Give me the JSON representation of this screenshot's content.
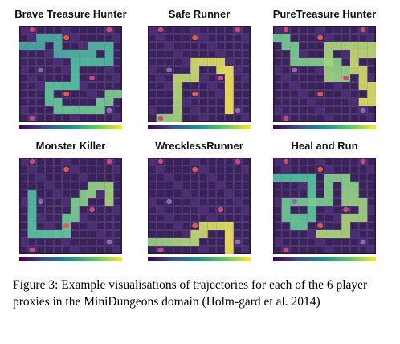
{
  "panels": [
    {
      "title": "Brave Treasure Hunter",
      "path": [
        [
          0,
          2
        ],
        [
          1,
          2
        ],
        [
          2,
          2
        ],
        [
          2,
          1
        ],
        [
          3,
          1
        ],
        [
          4,
          1
        ],
        [
          4,
          2
        ],
        [
          4,
          3
        ],
        [
          5,
          3
        ],
        [
          6,
          3
        ],
        [
          7,
          3
        ],
        [
          8,
          3
        ],
        [
          8,
          2
        ],
        [
          9,
          2
        ],
        [
          10,
          2
        ],
        [
          10,
          3
        ],
        [
          10,
          4
        ],
        [
          9,
          4
        ],
        [
          8,
          4
        ],
        [
          7,
          4
        ],
        [
          6,
          4
        ],
        [
          6,
          5
        ],
        [
          6,
          6
        ],
        [
          6,
          7
        ],
        [
          5,
          7
        ],
        [
          4,
          7
        ],
        [
          3,
          7
        ],
        [
          3,
          8
        ],
        [
          3,
          9
        ],
        [
          4,
          9
        ],
        [
          4,
          10
        ],
        [
          5,
          10
        ],
        [
          6,
          10
        ],
        [
          7,
          10
        ],
        [
          8,
          10
        ],
        [
          9,
          10
        ],
        [
          9,
          9
        ],
        [
          10,
          9
        ],
        [
          10,
          8
        ],
        [
          11,
          8
        ]
      ],
      "level": 0.38
    },
    {
      "title": "Safe Runner",
      "path": [
        [
          1,
          11
        ],
        [
          2,
          11
        ],
        [
          3,
          11
        ],
        [
          3,
          10
        ],
        [
          3,
          9
        ],
        [
          3,
          8
        ],
        [
          3,
          7
        ],
        [
          3,
          6
        ],
        [
          4,
          6
        ],
        [
          5,
          6
        ],
        [
          5,
          5
        ],
        [
          5,
          4
        ],
        [
          6,
          4
        ],
        [
          7,
          4
        ],
        [
          8,
          4
        ],
        [
          8,
          5
        ],
        [
          9,
          5
        ],
        [
          9,
          6
        ],
        [
          9,
          7
        ],
        [
          9,
          8
        ],
        [
          9,
          9
        ],
        [
          9,
          10
        ]
      ],
      "level": 0.95
    },
    {
      "title": "PureTreasure Hunter",
      "path": [
        [
          0,
          1
        ],
        [
          1,
          1
        ],
        [
          1,
          2
        ],
        [
          2,
          2
        ],
        [
          2,
          3
        ],
        [
          2,
          4
        ],
        [
          3,
          4
        ],
        [
          4,
          4
        ],
        [
          5,
          4
        ],
        [
          6,
          4
        ],
        [
          7,
          4
        ],
        [
          7,
          5
        ],
        [
          8,
          5
        ],
        [
          8,
          6
        ],
        [
          7,
          6
        ],
        [
          6,
          6
        ],
        [
          6,
          5
        ],
        [
          6,
          4
        ],
        [
          6,
          3
        ],
        [
          6,
          2
        ],
        [
          7,
          2
        ],
        [
          8,
          2
        ],
        [
          9,
          2
        ],
        [
          10,
          2
        ],
        [
          11,
          2
        ],
        [
          11,
          3
        ],
        [
          10,
          3
        ],
        [
          9,
          3
        ],
        [
          9,
          4
        ],
        [
          9,
          5
        ],
        [
          10,
          5
        ],
        [
          10,
          6
        ],
        [
          10,
          7
        ],
        [
          11,
          7
        ],
        [
          11,
          8
        ],
        [
          11,
          9
        ],
        [
          10,
          9
        ]
      ],
      "level": 0.78
    },
    {
      "title": "Monster Killer",
      "path": [
        [
          1,
          4
        ],
        [
          1,
          5
        ],
        [
          1,
          6
        ],
        [
          1,
          7
        ],
        [
          1,
          8
        ],
        [
          1,
          9
        ],
        [
          2,
          9
        ],
        [
          3,
          9
        ],
        [
          4,
          9
        ],
        [
          5,
          9
        ],
        [
          5,
          8
        ],
        [
          5,
          7
        ],
        [
          6,
          7
        ],
        [
          6,
          6
        ],
        [
          6,
          5
        ],
        [
          7,
          5
        ],
        [
          7,
          4
        ],
        [
          8,
          4
        ],
        [
          8,
          3
        ],
        [
          9,
          3
        ],
        [
          10,
          3
        ],
        [
          10,
          4
        ],
        [
          10,
          5
        ]
      ],
      "level": 0.55
    },
    {
      "title": "WrecklessRunner",
      "path": [
        [
          0,
          10
        ],
        [
          1,
          10
        ],
        [
          2,
          10
        ],
        [
          3,
          10
        ],
        [
          4,
          10
        ],
        [
          5,
          10
        ],
        [
          5,
          9
        ],
        [
          6,
          9
        ],
        [
          6,
          8
        ],
        [
          7,
          8
        ],
        [
          8,
          8
        ],
        [
          9,
          8
        ],
        [
          9,
          9
        ],
        [
          9,
          10
        ],
        [
          9,
          11
        ]
      ],
      "level": 0.92
    },
    {
      "title": "Heal and Run",
      "path": [
        [
          0,
          2
        ],
        [
          1,
          2
        ],
        [
          2,
          2
        ],
        [
          3,
          2
        ],
        [
          4,
          2
        ],
        [
          4,
          3
        ],
        [
          4,
          4
        ],
        [
          4,
          5
        ],
        [
          4,
          6
        ],
        [
          4,
          7
        ],
        [
          3,
          7
        ],
        [
          3,
          8
        ],
        [
          2,
          8
        ],
        [
          2,
          7
        ],
        [
          1,
          7
        ],
        [
          1,
          6
        ],
        [
          1,
          5
        ],
        [
          2,
          5
        ],
        [
          3,
          5
        ],
        [
          4,
          5
        ],
        [
          5,
          5
        ],
        [
          6,
          5
        ],
        [
          6,
          4
        ],
        [
          6,
          3
        ],
        [
          6,
          2
        ],
        [
          7,
          2
        ],
        [
          8,
          2
        ],
        [
          8,
          3
        ],
        [
          9,
          3
        ],
        [
          9,
          4
        ],
        [
          8,
          4
        ],
        [
          8,
          5
        ],
        [
          9,
          5
        ],
        [
          10,
          5
        ],
        [
          10,
          6
        ],
        [
          10,
          7
        ],
        [
          9,
          7
        ],
        [
          8,
          7
        ],
        [
          8,
          8
        ],
        [
          8,
          9
        ],
        [
          7,
          9
        ],
        [
          6,
          9
        ],
        [
          5,
          9
        ]
      ],
      "level": 0.6
    }
  ],
  "colors": {
    "floor": "#4b2f72",
    "brick": "#3a2358",
    "brick_line": "#5a4283",
    "wall": "#2b1740",
    "monster": "#c44b7a",
    "treasure": "#e05a4f",
    "potion": "#8a6bb0",
    "low": "#3e7fa4",
    "mid": "#57c4a0",
    "high": "#f2e45a"
  },
  "caption": "Figure 3: Example visualisations of trajectories for each of the 6 player proxies in the MiniDungeons domain (Holm-gard et al. 2014)"
}
